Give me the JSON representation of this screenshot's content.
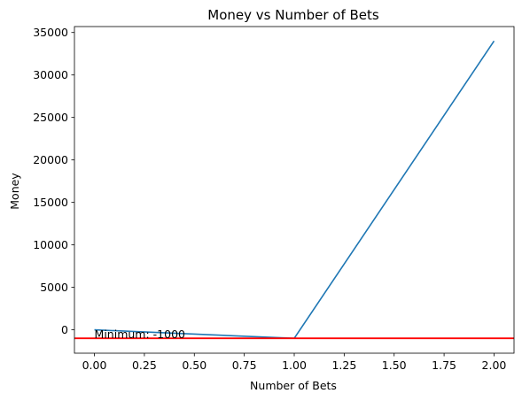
{
  "chart_data": {
    "type": "line",
    "title": "Money vs Number of Bets",
    "xlabel": "Number of Bets",
    "ylabel": "Money",
    "xlim": [
      -0.1,
      2.1
    ],
    "ylim": [
      -2750,
      35700
    ],
    "x_ticks": [
      0.0,
      0.25,
      0.5,
      0.75,
      1.0,
      1.25,
      1.5,
      1.75,
      2.0
    ],
    "x_tick_labels": [
      "0.00",
      "0.25",
      "0.50",
      "0.75",
      "1.00",
      "1.25",
      "1.50",
      "1.75",
      "2.00"
    ],
    "y_ticks": [
      0,
      5000,
      10000,
      15000,
      20000,
      25000,
      30000,
      35000
    ],
    "y_tick_labels": [
      "0",
      "5000",
      "10000",
      "15000",
      "20000",
      "25000",
      "30000",
      "35000"
    ],
    "grid": false,
    "legend": "none",
    "series": [
      {
        "x": [
          0,
          1,
          2
        ],
        "values": [
          0,
          -1000,
          34000
        ],
        "color": "#1f77b4"
      }
    ],
    "hlines": [
      {
        "y": -1000,
        "color": "#ff0000"
      }
    ],
    "annotations": [
      {
        "text": "Minimum: -1000",
        "x": 0,
        "y": -1000
      }
    ]
  }
}
